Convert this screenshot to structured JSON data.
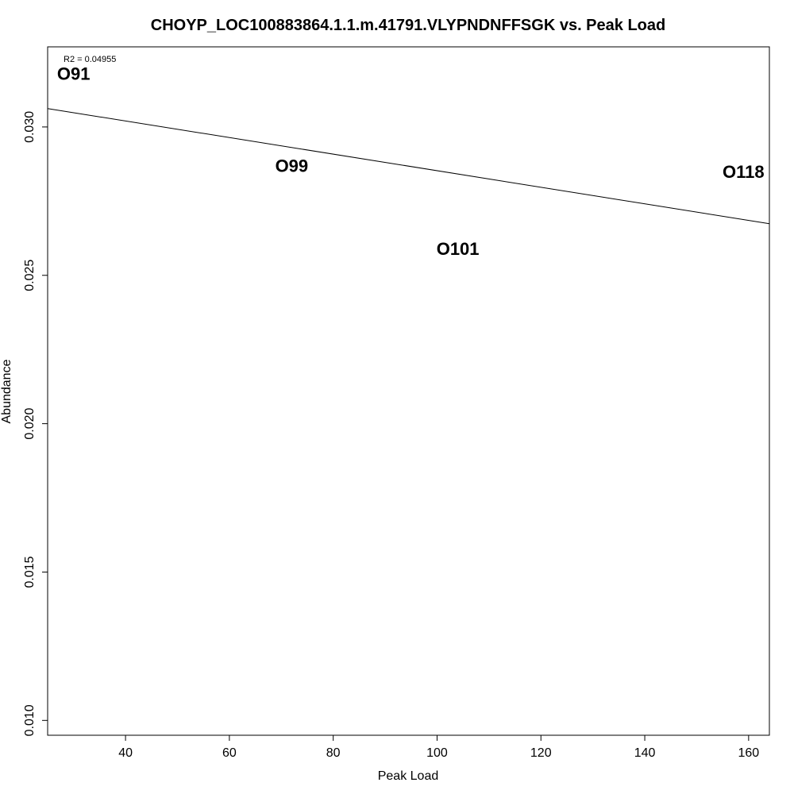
{
  "chart_data": {
    "type": "scatter",
    "title": "CHOYP_LOC100883864.1.1.m.41791.VLYPNDNFFSGK vs. Peak Load",
    "xlabel": "Peak Load",
    "ylabel": "Abundance",
    "xlim": [
      25,
      164
    ],
    "ylim": [
      0.0095,
      0.0327
    ],
    "x_ticks": [
      40,
      60,
      80,
      100,
      120,
      140,
      160
    ],
    "x_tick_labels": [
      "40",
      "60",
      "80",
      "100",
      "120",
      "140",
      "160"
    ],
    "y_ticks": [
      0.01,
      0.015,
      0.02,
      0.025,
      0.03
    ],
    "y_tick_labels": [
      "0.010",
      "0.015",
      "0.020",
      "0.025",
      "0.030"
    ],
    "points": [
      {
        "label": "O91",
        "x": 30,
        "y": 0.0318
      },
      {
        "label": "O99",
        "x": 72,
        "y": 0.0287
      },
      {
        "label": "O101",
        "x": 104,
        "y": 0.0259
      },
      {
        "label": "O118",
        "x": 159,
        "y": 0.0285
      }
    ],
    "regression_line": {
      "x": [
        25,
        164
      ],
      "y": [
        0.03062,
        0.02674
      ]
    },
    "annotation": "R2 = 0.04955",
    "grid": false,
    "legend": "none"
  }
}
